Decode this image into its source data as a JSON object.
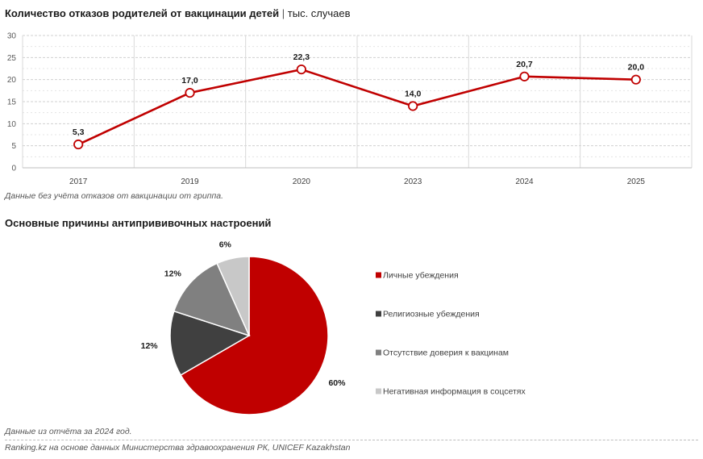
{
  "header": {
    "title": "Количество отказов родителей от вакцинации детей",
    "separator": "|",
    "unit": "тыс. случаев"
  },
  "chart_data": [
    {
      "type": "line",
      "title": "Количество отказов родителей от вакцинации детей",
      "unit": "тыс. случаев",
      "categories": [
        "2017",
        "2019",
        "2020",
        "2023",
        "2024",
        "2025"
      ],
      "values": [
        5.3,
        17.0,
        22.3,
        14.0,
        20.7,
        20.0
      ],
      "data_labels": [
        "5,3",
        "17,0",
        "22,3",
        "14,0",
        "20,7",
        "20,0"
      ],
      "y_ticks": [
        "0",
        "5",
        "10",
        "15",
        "20",
        "25",
        "30"
      ],
      "ylim": [
        0,
        30
      ],
      "color": "#c00000",
      "note": "Данные без учёта отказов от вакцинации от гриппа."
    },
    {
      "type": "pie",
      "title": "Основные причины антипрививочных настроений",
      "labels": [
        "Личные убеждения",
        "Религиозные убеждения",
        "Отсутствие доверия к вакцинам",
        "Негативная информация в соцсетях"
      ],
      "values": [
        60,
        12,
        12,
        6
      ],
      "value_labels": [
        "60%",
        "12%",
        "12%",
        "6%"
      ],
      "colors": [
        "#c00000",
        "#404040",
        "#808080",
        "#c8c8c8"
      ],
      "note": "Данные из отчёта за 2024 год."
    }
  ],
  "footer": {
    "source": "Ranking.kz на основе данных Министерства здравоохранения РК, UNICEF Kazakhstan"
  }
}
